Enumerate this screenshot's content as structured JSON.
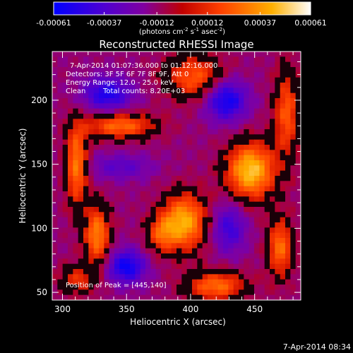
{
  "chart_data": {
    "type": "heatmap",
    "title": "Reconstructed RHESSI Image",
    "xlabel": "Heliocentric X (arcsec)",
    "ylabel": "Heliocentric Y (arcsec)",
    "xlim": [
      292,
      486
    ],
    "ylim": [
      44,
      238
    ],
    "xticks": [
      300,
      350,
      400,
      450
    ],
    "yticks": [
      50,
      100,
      150,
      200
    ],
    "colorbar": {
      "ticks": [
        "-0.00061",
        "-0.00037",
        "-0.00012",
        "0.00012",
        "0.00037",
        "0.00061"
      ],
      "units_html": "(photons cm<sup>-2</sup> s<sup>-1</sup> asec<sup>-2</sup>)",
      "units_text": "(photons cm-2 s-1 asec-2)",
      "range": [
        -0.00061,
        0.00061
      ],
      "colors": [
        "#0000ff",
        "#5000d0",
        "#8000a0",
        "#c00000",
        "#ff4000",
        "#ffb000",
        "#ffffff"
      ]
    },
    "annotations": [
      "7-Apr-2014 01:07:36.000 to 01:12:16.000",
      "Detectors: 3F 5F 6F 7F 8F 9F, Att 0",
      "Energy Range: 12.0 - 25.0 keV",
      "Clean",
      "Total counts: 8.20E+03",
      "Position of Peak = [445,140]"
    ],
    "peak_position": [
      445,
      140
    ],
    "grid": false,
    "sources": [
      {
        "x": 447,
        "y": 145,
        "amp": 0.00061,
        "sx": 13,
        "sy": 15
      },
      {
        "x": 395,
        "y": 105,
        "amp": 0.00055,
        "sx": 12,
        "sy": 15
      },
      {
        "x": 377,
        "y": 96,
        "amp": 0.0003,
        "sx": 8,
        "sy": 10
      },
      {
        "x": 327,
        "y": 95,
        "amp": 0.00045,
        "sx": 7,
        "sy": 16
      },
      {
        "x": 345,
        "y": 180,
        "amp": 0.0004,
        "sx": 19,
        "sy": 7
      },
      {
        "x": 311,
        "y": 150,
        "amp": 0.00045,
        "sx": 6,
        "sy": 22
      },
      {
        "x": 403,
        "y": 218,
        "amp": 0.00035,
        "sx": 16,
        "sy": 12
      },
      {
        "x": 475,
        "y": 190,
        "amp": 0.00035,
        "sx": 7,
        "sy": 24
      },
      {
        "x": 470,
        "y": 85,
        "amp": 0.0004,
        "sx": 7,
        "sy": 16
      },
      {
        "x": 420,
        "y": 55,
        "amp": 0.0004,
        "sx": 16,
        "sy": 8
      },
      {
        "x": 312,
        "y": 60,
        "amp": 0.00025,
        "sx": 10,
        "sy": 8
      },
      {
        "x": 345,
        "y": 148,
        "amp": -0.0002,
        "sx": 17,
        "sy": 7
      },
      {
        "x": 350,
        "y": 70,
        "amp": -0.00045,
        "sx": 10,
        "sy": 9
      },
      {
        "x": 428,
        "y": 200,
        "amp": -0.00045,
        "sx": 11,
        "sy": 11
      },
      {
        "x": 335,
        "y": 205,
        "amp": -0.0004,
        "sx": 13,
        "sy": 9
      },
      {
        "x": 430,
        "y": 100,
        "amp": -0.0003,
        "sx": 9,
        "sy": 13
      }
    ]
  },
  "footer": {
    "timestamp": "7-Apr-2014 08:34"
  }
}
